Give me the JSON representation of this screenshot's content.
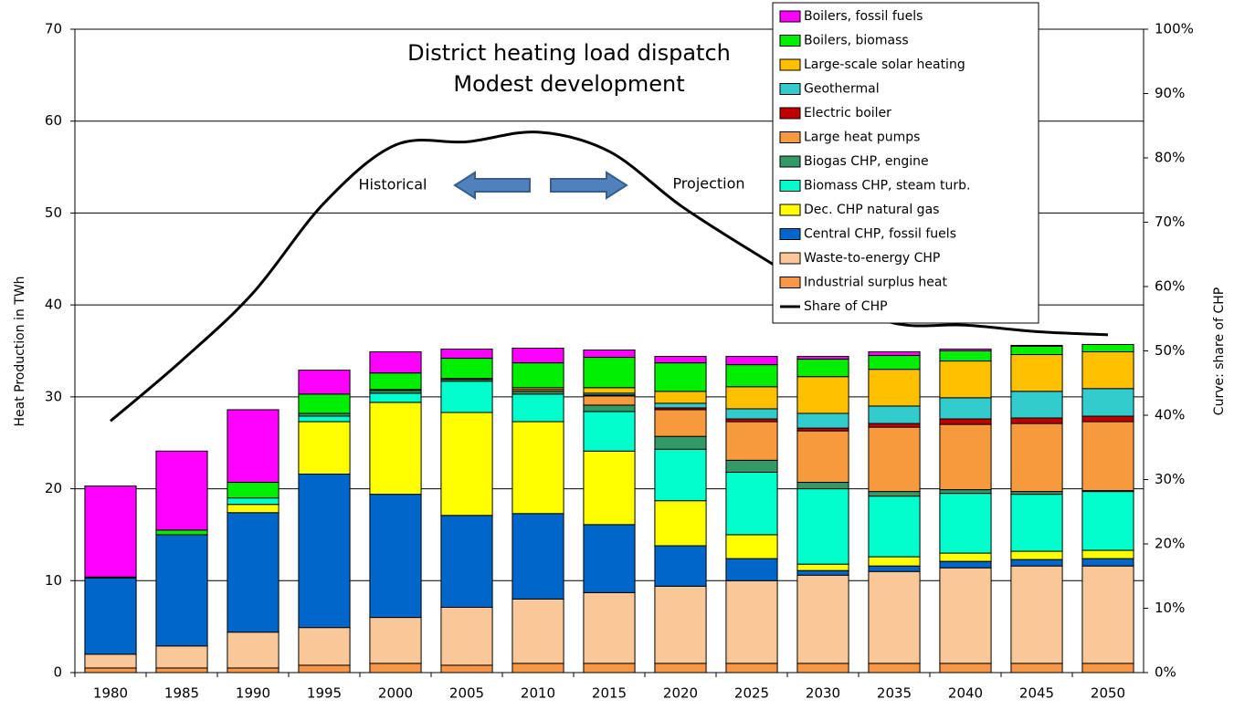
{
  "chart_data": {
    "type": "bar",
    "stacked": true,
    "title": [
      "District heating load dispatch",
      "Modest development"
    ],
    "annotations": [
      "Historical",
      "Projection"
    ],
    "ylabel": "Heat Production in TWh",
    "y2label": "Curve: share of CHP",
    "categories": [
      "1980",
      "1985",
      "1990",
      "1995",
      "2000",
      "2005",
      "2010",
      "2015",
      "2020",
      "2025",
      "2030",
      "2035",
      "2040",
      "2045",
      "2050"
    ],
    "ylim": [
      0,
      70
    ],
    "yticks": [
      0,
      10,
      20,
      30,
      40,
      50,
      60,
      70
    ],
    "y2lim": [
      0,
      100
    ],
    "y2ticks": [
      {
        "value": 0,
        "label": "0%"
      },
      {
        "value": 10,
        "label": "10%"
      },
      {
        "value": 20,
        "label": "20%"
      },
      {
        "value": 30,
        "label": "30%"
      },
      {
        "value": 40,
        "label": "40%"
      },
      {
        "value": 50,
        "label": "50%"
      },
      {
        "value": 60,
        "label": "60%"
      },
      {
        "value": 70,
        "label": "70%"
      },
      {
        "value": 80,
        "label": "80%"
      },
      {
        "value": 90,
        "label": "90%"
      },
      {
        "value": 100,
        "label": "100%"
      }
    ],
    "grid": true,
    "series": [
      {
        "name": "Industrial surplus heat",
        "color": "#f79646",
        "values": [
          0.5,
          0.5,
          0.5,
          0.8,
          1.0,
          0.8,
          1.0,
          1.0,
          1.0,
          1.0,
          1.0,
          1.0,
          1.0,
          1.0,
          1.0
        ]
      },
      {
        "name": "Waste-to-energy CHP",
        "color": "#fac898",
        "values": [
          1.5,
          2.4,
          3.9,
          4.1,
          5.0,
          6.3,
          7.0,
          7.7,
          8.4,
          9.0,
          9.6,
          10.0,
          10.4,
          10.6,
          10.6
        ]
      },
      {
        "name": "Central CHP, fossil fuels",
        "color": "#0066cc",
        "values": [
          8.3,
          12.1,
          13.0,
          16.7,
          13.4,
          10.0,
          9.3,
          7.4,
          4.4,
          2.4,
          0.5,
          0.6,
          0.7,
          0.7,
          0.8
        ]
      },
      {
        "name": "Dec. CHP natural gas",
        "color": "#ffff00",
        "values": [
          0,
          0,
          0.9,
          5.7,
          10.0,
          11.2,
          10.0,
          8.0,
          4.9,
          2.6,
          0.7,
          1.0,
          0.9,
          0.9,
          0.9
        ]
      },
      {
        "name": "Biomass CHP, steam turb.",
        "color": "#00ffcc",
        "values": [
          0,
          0,
          0.7,
          0.6,
          1.0,
          3.4,
          3.0,
          4.3,
          5.6,
          6.8,
          8.2,
          6.6,
          6.5,
          6.2,
          6.4
        ]
      },
      {
        "name": "Biogas CHP, engine",
        "color": "#339966",
        "values": [
          0,
          0,
          0,
          0.3,
          0.3,
          0.2,
          0.3,
          0.7,
          1.4,
          1.3,
          0.7,
          0.5,
          0.4,
          0.3,
          0.1
        ]
      },
      {
        "name": "Large heat pumps",
        "color": "#f79a3e",
        "values": [
          0,
          0,
          0,
          0,
          0.1,
          0.1,
          0.2,
          1.0,
          2.9,
          4.2,
          5.6,
          7.0,
          7.1,
          7.4,
          7.5
        ]
      },
      {
        "name": "Electric boiler",
        "color": "#c00000",
        "values": [
          0,
          0,
          0,
          0,
          0,
          0,
          0,
          0.1,
          0.2,
          0.3,
          0.3,
          0.4,
          0.6,
          0.6,
          0.6
        ]
      },
      {
        "name": "Geothermal",
        "color": "#33cccc",
        "values": [
          0,
          0,
          0,
          0,
          0,
          0,
          0,
          0.2,
          0.5,
          1.1,
          1.6,
          1.9,
          2.3,
          2.9,
          3.0
        ]
      },
      {
        "name": "Large-scale solar heating",
        "color": "#ffc000",
        "values": [
          0,
          0,
          0,
          0,
          0,
          0,
          0.2,
          0.6,
          1.3,
          2.4,
          4.0,
          4.0,
          4.0,
          4.0,
          4.0
        ]
      },
      {
        "name": "Boilers, biomass",
        "color": "#00ee00",
        "values": [
          0.1,
          0.5,
          1.7,
          2.1,
          1.8,
          2.2,
          2.7,
          3.3,
          3.1,
          2.4,
          1.9,
          1.5,
          1.1,
          0.9,
          0.8
        ]
      },
      {
        "name": "Boilers, fossil fuels",
        "color": "#ff00ff",
        "values": [
          9.9,
          8.6,
          7.9,
          2.6,
          2.3,
          1.0,
          1.6,
          0.8,
          0.7,
          0.9,
          0.3,
          0.4,
          0.2,
          0.1,
          0
        ]
      },
      {
        "name": "Share of CHP",
        "color": "#000000",
        "axis": "y2",
        "values": [
          39.1,
          48.5,
          59,
          73,
          82,
          82.5,
          84,
          81,
          72.6,
          65.5,
          59,
          54.3,
          54,
          53,
          52.5
        ]
      }
    ]
  }
}
